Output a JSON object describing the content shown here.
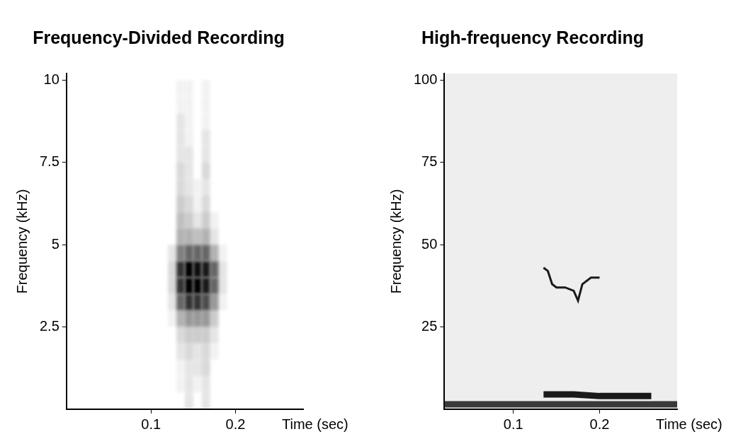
{
  "chart_data": [
    {
      "type": "heatmap",
      "title": "Frequency-Divided Recording",
      "x_label": "Time (sec)",
      "y_label": "Frequency (kHz)",
      "color": "#000000",
      "x": [
        0.125,
        0.135,
        0.145,
        0.155,
        0.165,
        0.175,
        0.185
      ],
      "y": [
        0.25,
        0.75,
        1.25,
        1.75,
        2.25,
        2.75,
        3.25,
        3.75,
        4.25,
        4.75,
        5.25,
        5.75,
        6.25,
        6.75,
        7.25,
        7.75,
        8.25,
        8.75,
        9.25,
        9.75
      ],
      "cells": [
        [
          0,
          0,
          0.1,
          0,
          0.1,
          0,
          0
        ],
        [
          0,
          0.05,
          0.1,
          0.05,
          0.1,
          0,
          0
        ],
        [
          0,
          0.05,
          0.1,
          0.1,
          0.15,
          0,
          0
        ],
        [
          0,
          0.1,
          0.15,
          0.1,
          0.15,
          0.05,
          0
        ],
        [
          0,
          0.15,
          0.2,
          0.2,
          0.2,
          0.1,
          0
        ],
        [
          0.05,
          0.3,
          0.4,
          0.4,
          0.4,
          0.2,
          0
        ],
        [
          0.1,
          0.6,
          0.8,
          0.8,
          0.7,
          0.4,
          0.05
        ],
        [
          0.15,
          0.8,
          1,
          1,
          0.9,
          0.6,
          0.1
        ],
        [
          0.15,
          0.8,
          1,
          0.95,
          0.9,
          0.6,
          0.1
        ],
        [
          0.1,
          0.5,
          0.6,
          0.6,
          0.6,
          0.3,
          0.05
        ],
        [
          0,
          0.3,
          0.3,
          0.25,
          0.3,
          0.1,
          0
        ],
        [
          0,
          0.25,
          0.2,
          0.1,
          0.2,
          0.05,
          0
        ],
        [
          0,
          0.2,
          0.15,
          0.05,
          0.15,
          0,
          0
        ],
        [
          0,
          0.15,
          0.1,
          0.05,
          0.1,
          0,
          0
        ],
        [
          0,
          0.15,
          0.1,
          0,
          0.15,
          0,
          0
        ],
        [
          0,
          0.1,
          0.1,
          0,
          0.1,
          0,
          0
        ],
        [
          0,
          0.1,
          0.05,
          0,
          0.1,
          0,
          0
        ],
        [
          0,
          0.1,
          0.05,
          0,
          0.05,
          0,
          0
        ],
        [
          0,
          0.05,
          0.05,
          0,
          0.05,
          0,
          0
        ],
        [
          0,
          0.05,
          0.05,
          0,
          0.05,
          0,
          0
        ]
      ],
      "xlim": [
        0,
        0.28
      ],
      "xticks": [
        0.1,
        0.2
      ],
      "ylim": [
        0,
        10.2
      ],
      "yticks": [
        2.5,
        5,
        7.5,
        10
      ],
      "grid": false
    },
    {
      "type": "line",
      "title": "High-frequency Recording",
      "x_label": "Time (sec)",
      "y_label": "Frequency (kHz)",
      "series": [
        {
          "color": "#1a1a1a",
          "line_style": "solid",
          "x": [
            0.135,
            0.14,
            0.145,
            0.15,
            0.16,
            0.17,
            0.175,
            0.18,
            0.19,
            0.2
          ],
          "values": [
            43,
            42,
            38,
            37,
            37,
            36,
            33,
            38,
            40,
            40
          ]
        },
        {
          "color": "#1a1a1a",
          "line_style": "bold",
          "x": [
            0.135,
            0.17,
            0.2,
            0.26
          ],
          "values": [
            4.5,
            4.5,
            4,
            4
          ]
        },
        {
          "color": "#3a3a3a",
          "line_style": "bold",
          "x": [
            0.02,
            0.29
          ],
          "values": [
            1.5,
            1.5
          ]
        }
      ],
      "xlim": [
        0.02,
        0.29
      ],
      "xticks": [
        0.1,
        0.2
      ],
      "ylim": [
        0,
        102
      ],
      "yticks": [
        25,
        50,
        75,
        100
      ],
      "grid": false
    }
  ]
}
